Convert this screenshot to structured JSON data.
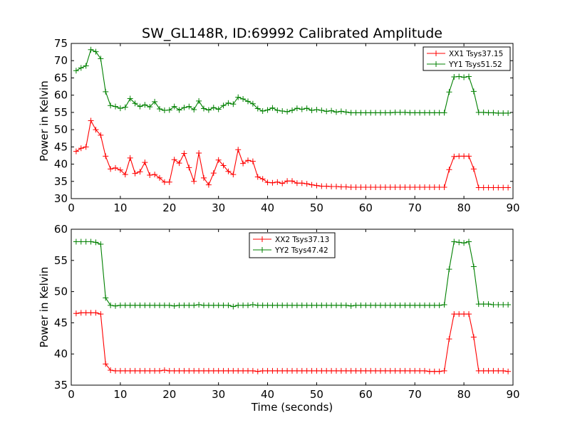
{
  "figure": {
    "title": "SW_GL148R, ID:69992 Calibrated Amplitude"
  },
  "chart_data": [
    {
      "type": "line",
      "ylabel": "Power in Kelvin",
      "xlabel": "",
      "xlim": [
        0,
        90
      ],
      "ylim": [
        30,
        75
      ],
      "xticks": [
        0,
        10,
        20,
        30,
        40,
        50,
        60,
        70,
        80,
        90
      ],
      "yticks": [
        30,
        35,
        40,
        45,
        50,
        55,
        60,
        65,
        70,
        75
      ],
      "grid": false,
      "legend_position": "top-right",
      "x": [
        1,
        2,
        3,
        4,
        5,
        6,
        7,
        8,
        9,
        10,
        11,
        12,
        13,
        14,
        15,
        16,
        17,
        18,
        19,
        20,
        21,
        22,
        23,
        24,
        25,
        26,
        27,
        28,
        29,
        30,
        31,
        32,
        33,
        34,
        35,
        36,
        37,
        38,
        39,
        40,
        41,
        42,
        43,
        44,
        45,
        46,
        47,
        48,
        49,
        50,
        51,
        52,
        53,
        54,
        55,
        56,
        57,
        58,
        59,
        60,
        61,
        62,
        63,
        64,
        65,
        66,
        67,
        68,
        69,
        70,
        71,
        72,
        73,
        74,
        75,
        76,
        77,
        78,
        79,
        80,
        81,
        82,
        83,
        84,
        85,
        86,
        87,
        88,
        89
      ],
      "series": [
        {
          "name": "XX1 Tsys37.15",
          "color": "#ff0000",
          "values": [
            43.7,
            44.6,
            45.0,
            52.6,
            50.0,
            48.4,
            42.3,
            38.6,
            38.9,
            38.3,
            37.0,
            41.8,
            37.3,
            37.8,
            40.5,
            36.8,
            37.0,
            36.0,
            34.8,
            34.8,
            41.3,
            40.3,
            43.1,
            39.0,
            35.0,
            43.2,
            36.0,
            34.0,
            37.4,
            41.2,
            39.6,
            37.9,
            37.0,
            44.2,
            40.2,
            41.1,
            40.8,
            36.3,
            35.7,
            34.7,
            34.6,
            34.8,
            34.4,
            35.1,
            35.1,
            34.5,
            34.5,
            34.3,
            34.0,
            33.8,
            33.6,
            33.6,
            33.5,
            33.5,
            33.4,
            33.4,
            33.3,
            33.3,
            33.3,
            33.3,
            33.3,
            33.3,
            33.3,
            33.3,
            33.3,
            33.3,
            33.3,
            33.3,
            33.3,
            33.3,
            33.3,
            33.3,
            33.3,
            33.3,
            33.3,
            33.3,
            38.4,
            42.2,
            42.3,
            42.3,
            42.3,
            38.6,
            33.2,
            33.2,
            33.2,
            33.2,
            33.2,
            33.2,
            33.2
          ]
        },
        {
          "name": "YY1 Tsys51.52",
          "color": "#008000",
          "values": [
            67.1,
            67.9,
            68.5,
            73.2,
            72.6,
            70.6,
            61.0,
            57.0,
            56.7,
            56.2,
            56.5,
            59.0,
            57.6,
            56.7,
            57.2,
            56.6,
            58.1,
            56.0,
            55.6,
            55.7,
            56.7,
            55.7,
            56.4,
            56.7,
            55.8,
            58.3,
            56.1,
            55.7,
            56.4,
            55.9,
            57.0,
            57.7,
            57.4,
            59.4,
            58.9,
            58.2,
            57.5,
            56.1,
            55.4,
            55.7,
            56.3,
            55.6,
            55.4,
            55.2,
            55.6,
            56.2,
            55.9,
            56.2,
            55.6,
            55.8,
            55.6,
            55.3,
            55.5,
            55.1,
            55.3,
            55.1,
            54.9,
            54.9,
            54.9,
            54.9,
            54.9,
            54.9,
            54.9,
            54.9,
            54.9,
            55.0,
            55.0,
            55.0,
            54.9,
            54.9,
            54.9,
            54.9,
            54.9,
            54.9,
            54.9,
            54.9,
            60.9,
            65.3,
            65.4,
            65.2,
            65.4,
            61.1,
            55.0,
            55.0,
            54.9,
            54.9,
            54.8,
            54.8,
            54.8
          ]
        }
      ]
    },
    {
      "type": "line",
      "ylabel": "Power in Kelvin",
      "xlabel": "Time (seconds)",
      "xlim": [
        0,
        90
      ],
      "ylim": [
        35,
        60
      ],
      "xticks": [
        0,
        10,
        20,
        30,
        40,
        50,
        60,
        70,
        80,
        90
      ],
      "yticks": [
        35,
        40,
        45,
        50,
        55,
        60
      ],
      "grid": false,
      "legend_position": "top-center",
      "x": [
        1,
        2,
        3,
        4,
        5,
        6,
        7,
        8,
        9,
        10,
        11,
        12,
        13,
        14,
        15,
        16,
        17,
        18,
        19,
        20,
        21,
        22,
        23,
        24,
        25,
        26,
        27,
        28,
        29,
        30,
        31,
        32,
        33,
        34,
        35,
        36,
        37,
        38,
        39,
        40,
        41,
        42,
        43,
        44,
        45,
        46,
        47,
        48,
        49,
        50,
        51,
        52,
        53,
        54,
        55,
        56,
        57,
        58,
        59,
        60,
        61,
        62,
        63,
        64,
        65,
        66,
        67,
        68,
        69,
        70,
        71,
        72,
        73,
        74,
        75,
        76,
        77,
        78,
        79,
        80,
        81,
        82,
        83,
        84,
        85,
        86,
        87,
        88,
        89
      ],
      "series": [
        {
          "name": "XX2 Tsys37.13",
          "color": "#ff0000",
          "values": [
            46.5,
            46.6,
            46.6,
            46.6,
            46.6,
            46.4,
            38.4,
            37.4,
            37.3,
            37.3,
            37.3,
            37.3,
            37.3,
            37.3,
            37.3,
            37.3,
            37.3,
            37.3,
            37.4,
            37.3,
            37.3,
            37.3,
            37.3,
            37.3,
            37.3,
            37.3,
            37.3,
            37.3,
            37.3,
            37.3,
            37.3,
            37.3,
            37.3,
            37.3,
            37.3,
            37.3,
            37.3,
            37.2,
            37.3,
            37.3,
            37.3,
            37.3,
            37.3,
            37.3,
            37.3,
            37.3,
            37.3,
            37.3,
            37.3,
            37.3,
            37.3,
            37.3,
            37.3,
            37.3,
            37.3,
            37.3,
            37.3,
            37.3,
            37.3,
            37.3,
            37.3,
            37.3,
            37.3,
            37.3,
            37.3,
            37.3,
            37.3,
            37.3,
            37.3,
            37.3,
            37.3,
            37.3,
            37.2,
            37.2,
            37.2,
            37.3,
            42.4,
            46.4,
            46.4,
            46.4,
            46.4,
            42.7,
            37.3,
            37.3,
            37.3,
            37.3,
            37.3,
            37.3,
            37.2
          ]
        },
        {
          "name": "YY2 Tsys47.42",
          "color": "#008000",
          "values": [
            58.0,
            58.0,
            58.0,
            58.0,
            57.9,
            57.6,
            49.0,
            47.8,
            47.7,
            47.8,
            47.8,
            47.8,
            47.8,
            47.8,
            47.8,
            47.8,
            47.8,
            47.8,
            47.8,
            47.8,
            47.7,
            47.8,
            47.8,
            47.8,
            47.8,
            47.9,
            47.8,
            47.8,
            47.8,
            47.8,
            47.8,
            47.8,
            47.6,
            47.8,
            47.8,
            47.8,
            47.9,
            47.8,
            47.8,
            47.8,
            47.8,
            47.8,
            47.8,
            47.8,
            47.8,
            47.8,
            47.8,
            47.8,
            47.8,
            47.8,
            47.8,
            47.8,
            47.8,
            47.8,
            47.8,
            47.8,
            47.7,
            47.8,
            47.8,
            47.8,
            47.8,
            47.8,
            47.8,
            47.8,
            47.8,
            47.8,
            47.8,
            47.8,
            47.8,
            47.8,
            47.8,
            47.8,
            47.8,
            47.8,
            47.8,
            47.9,
            53.6,
            58.0,
            57.9,
            57.8,
            58.0,
            54.0,
            48.0,
            48.0,
            48.0,
            47.9,
            47.9,
            47.9,
            47.9
          ]
        }
      ]
    }
  ]
}
